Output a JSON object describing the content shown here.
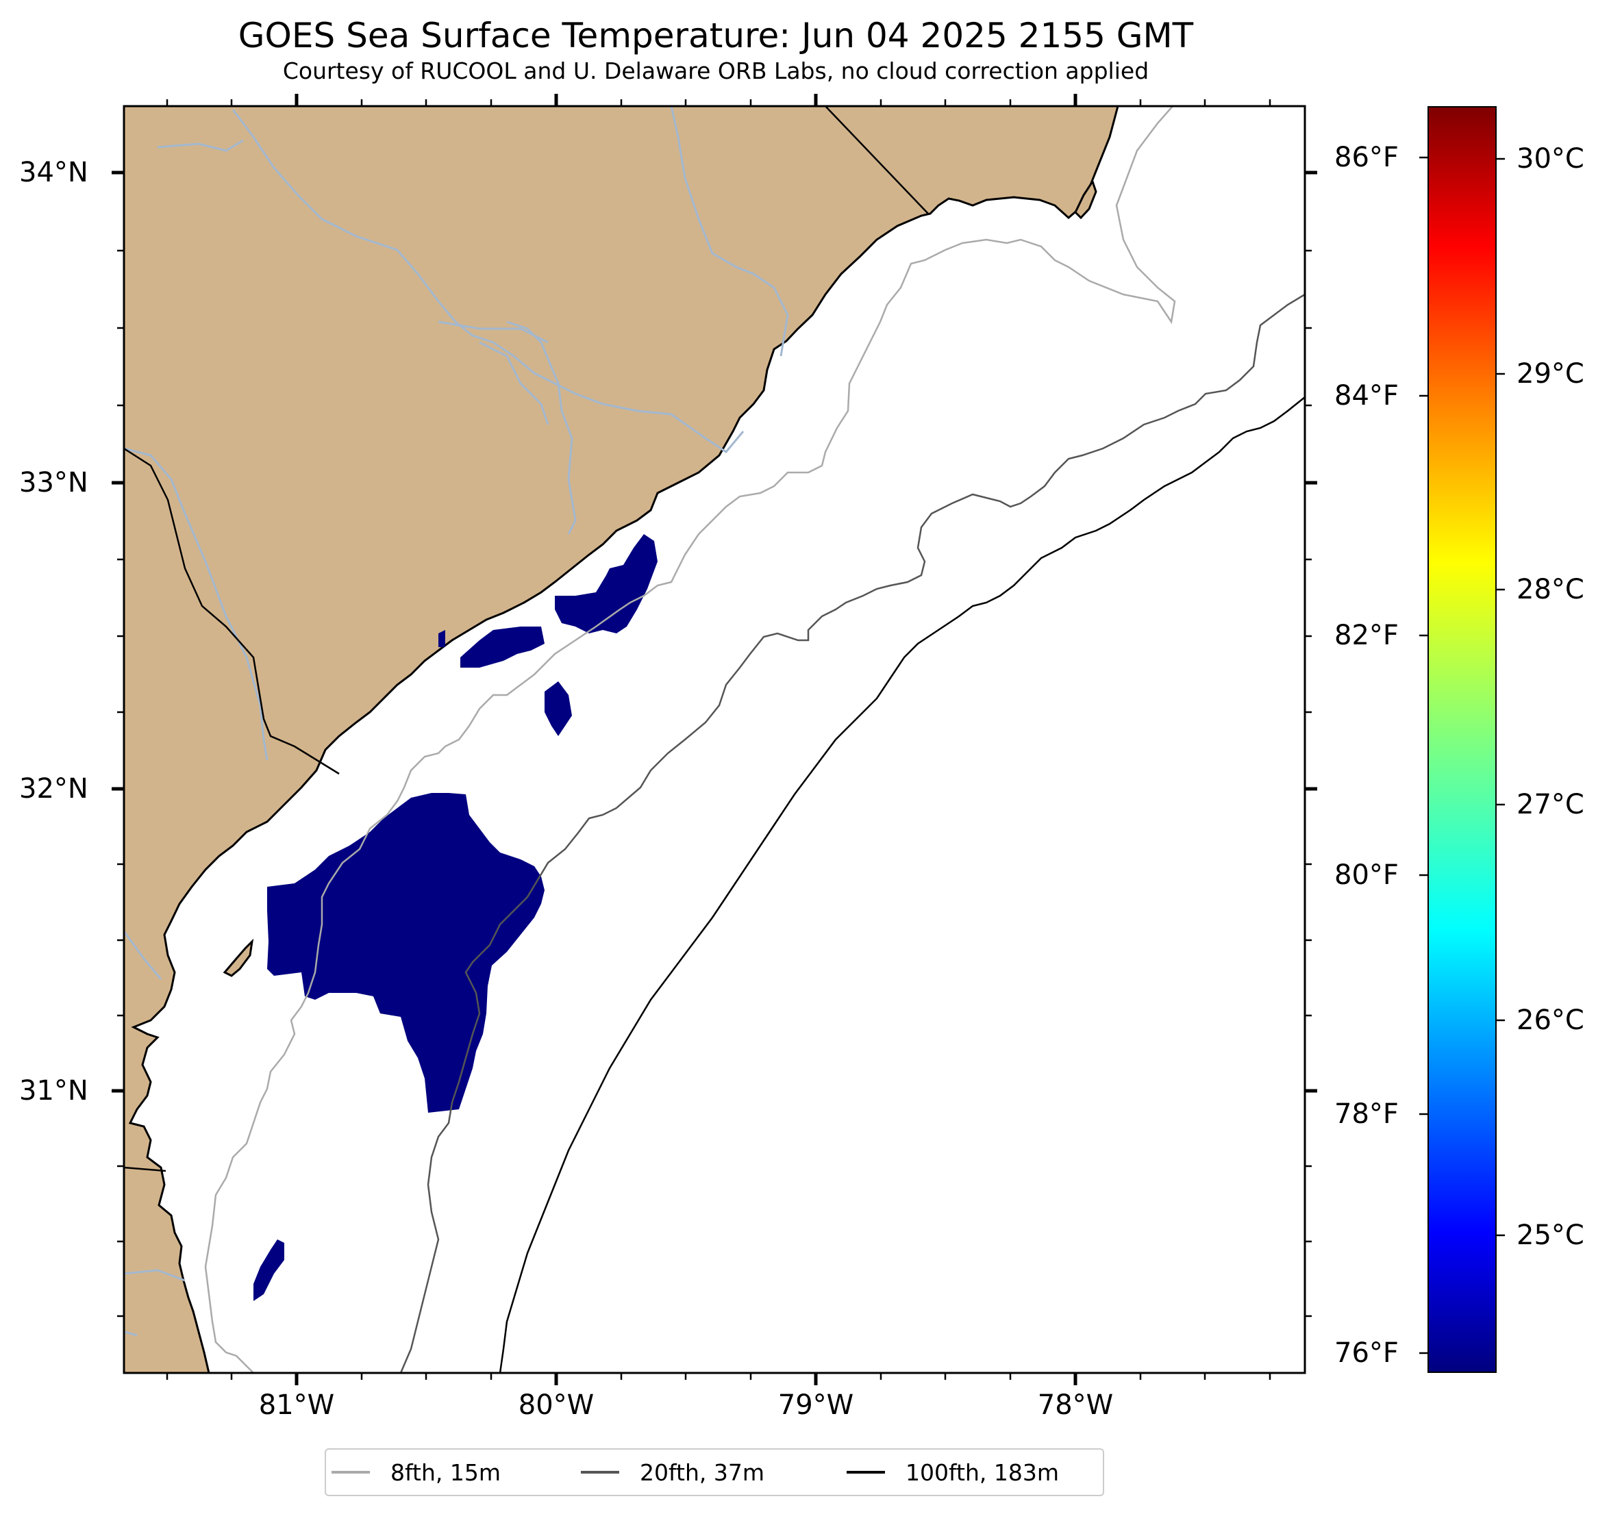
{
  "header": {
    "title": "GOES Sea Surface Temperature: Jun 04 2025 2155 GMT",
    "subtitle": "Courtesy of RUCOOL and U. Delaware ORB Labs, no cloud correction applied"
  },
  "map": {
    "extent_lon": [
      -81.67,
      -77.1
    ],
    "extent_lat": [
      30.08,
      34.22
    ],
    "land_color": "#d2b48c",
    "river_color": "#a3b8cf",
    "missing_data_color": "#ffffff",
    "sst_patch_color": "#000080",
    "lat_ticks": [
      "34°N",
      "33°N",
      "32°N",
      "31°N"
    ],
    "lon_ticks": [
      "81°W",
      "80°W",
      "79°W",
      "78°W"
    ]
  },
  "colorbar": {
    "fahrenheit_ticks": [
      "86°F",
      "84°F",
      "82°F",
      "80°F",
      "78°F",
      "76°F"
    ],
    "celsius_ticks": [
      "30°C",
      "29°C",
      "28°C",
      "27°C",
      "26°C",
      "25°C"
    ],
    "colormap": "jet"
  },
  "legend": {
    "items": [
      {
        "label": "8fth, 15m",
        "color": "#aaaaaa"
      },
      {
        "label": "20fth, 37m",
        "color": "#555555"
      },
      {
        "label": "100fth, 183m",
        "color": "#000000"
      }
    ]
  }
}
